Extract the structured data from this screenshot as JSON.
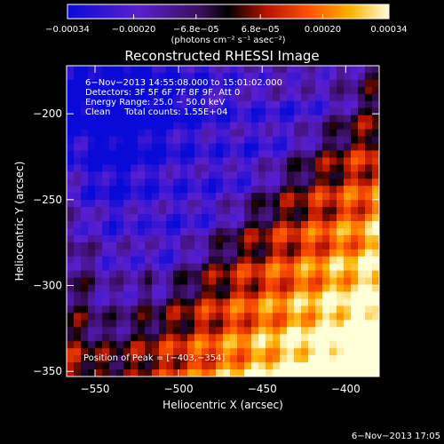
{
  "chart_data": {
    "type": "heatmap",
    "title": "Reconstructed RHESSI Image",
    "xlabel": "Heliocentric X (arcsec)",
    "ylabel": "Heliocentric Y (arcsec)",
    "x_ticks": [
      -550,
      -500,
      -450,
      -400
    ],
    "x_tick_labels": [
      "−550",
      "−500",
      "−450",
      "−400"
    ],
    "y_ticks": [
      -200,
      -250,
      -300,
      -350
    ],
    "y_tick_labels": [
      "−200",
      "−250",
      "−300",
      "−350"
    ],
    "xlim": [
      -567,
      -380
    ],
    "ylim": [
      -353,
      -172
    ],
    "colorbar": {
      "min": -0.00034,
      "max": 0.00034,
      "ticks": [
        -0.00034,
        -0.0002,
        -6.8e-05,
        6.8e-05,
        0.0002,
        0.00034
      ],
      "tick_labels": [
        "−0.00034",
        "−0.00020",
        "−6.8e−05",
        "6.8e−05",
        "0.00020",
        "0.00034"
      ],
      "units_label": "(photons cm⁻² s⁻¹ asec⁻²)"
    },
    "annotations": [
      "6−Nov−2013 14:55:08.000 to 15:01:02.000",
      "Detectors: 3F 5F 6F 7F 8F 9F, Att 0",
      "Energy Range: 25.0 − 50.0 keV",
      "Clean     Total counts: 1.55E+04"
    ],
    "peak_label": "Position of Peak = [−403,−354]",
    "peak_position": [
      -403,
      -354
    ],
    "grid": false,
    "legend": "colorbar-top"
  },
  "footer": {
    "timestamp": "6−Nov−2013 17:05"
  }
}
